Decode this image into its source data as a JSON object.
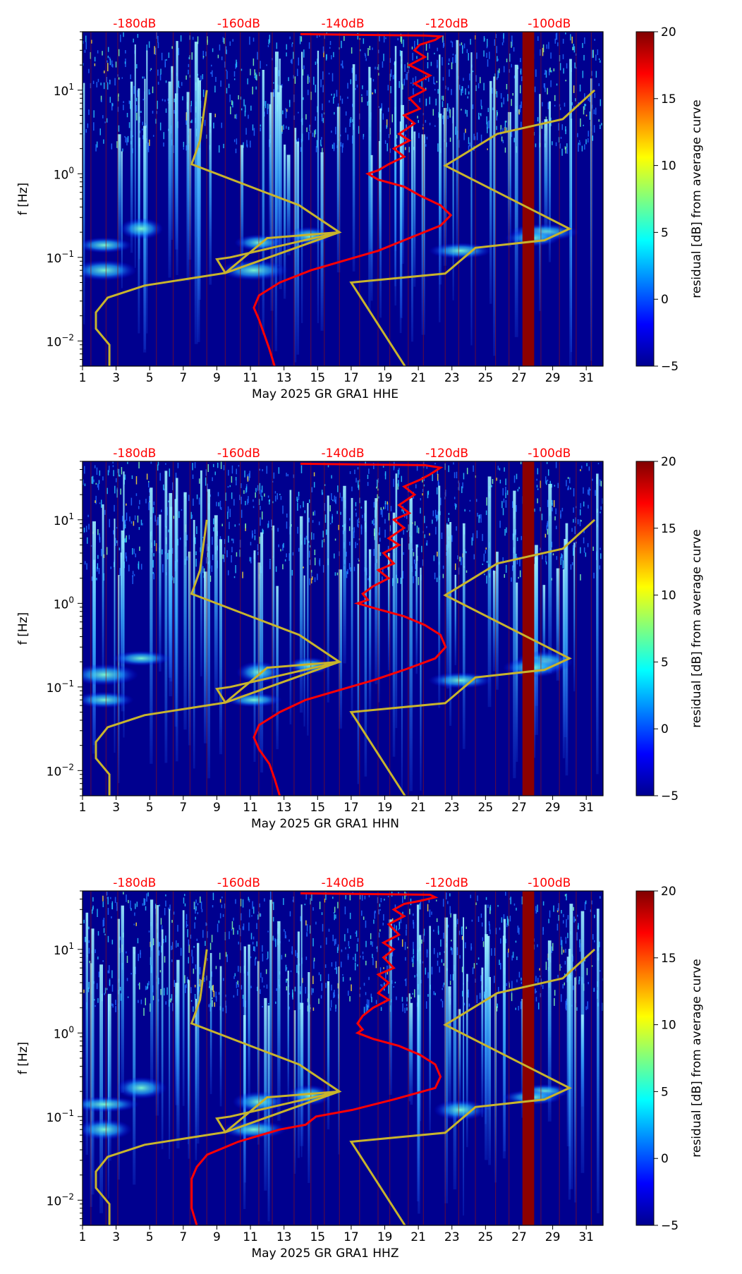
{
  "colors": {
    "background": "#00008f",
    "db_axis_text": "#ff0000",
    "red_curve": "#ff0000",
    "yellow_curve": "#c8b42c",
    "gap_band": "#8b0000",
    "day_lines": "#a0140a"
  },
  "colorbar": {
    "label": "residual [dB] from average curve",
    "ticks": [
      "20",
      "15",
      "10",
      "5",
      "0",
      "−5"
    ],
    "range": [
      -5,
      20
    ]
  },
  "shared_axes": {
    "ylabel": "f [Hz]",
    "y_ticks": [
      {
        "label": "10",
        "exp": "1",
        "f": 10
      },
      {
        "label": "10",
        "exp": "0",
        "f": 1
      },
      {
        "label": "10",
        "exp": "−1",
        "f": 0.1
      },
      {
        "label": "10",
        "exp": "−2",
        "f": 0.01
      }
    ],
    "y_range_hz": [
      0.005,
      50
    ],
    "x_ticks": [
      "1",
      "3",
      "5",
      "7",
      "9",
      "11",
      "13",
      "15",
      "17",
      "19",
      "21",
      "23",
      "25",
      "27",
      "29",
      "31"
    ],
    "x_range_day": [
      1,
      32
    ],
    "db_ticks": [
      "-180dB",
      "-160dB",
      "-140dB",
      "-120dB",
      "-100dB"
    ],
    "db_tick_day": [
      4.1,
      10.3,
      16.5,
      22.7,
      28.8
    ],
    "data_gap_days": [
      27.2,
      27.9
    ],
    "day_lines": [
      1.5,
      2.4,
      3.1,
      5.4,
      6.4,
      7.4,
      8.4,
      9.5,
      10.4,
      11.5,
      12.3,
      13.6,
      14.6,
      15.4,
      16.3,
      17.5,
      18.6,
      19.3,
      20.4,
      21.3,
      22.6,
      23.4,
      24.4,
      25.6,
      26.4,
      28.3,
      29.4,
      30.4,
      31.3
    ]
  },
  "chart_data": [
    {
      "type": "heatmap",
      "title": "",
      "xlabel": "May 2025 GR GRA1  HHE",
      "ylabel": "f [Hz]",
      "noise_model_curve_db_vs_hz": [
        [
          -124,
          45
        ],
        [
          -121,
          44
        ],
        [
          -122,
          40
        ],
        [
          -125,
          35
        ],
        [
          -126,
          30
        ],
        [
          -124,
          25
        ],
        [
          -127,
          20
        ],
        [
          -123,
          15
        ],
        [
          -126,
          12
        ],
        [
          -124,
          10
        ],
        [
          -127,
          8
        ],
        [
          -125,
          6
        ],
        [
          -128,
          5
        ],
        [
          -126,
          4
        ],
        [
          -129,
          3
        ],
        [
          -127,
          2.5
        ],
        [
          -130,
          2
        ],
        [
          -128,
          1.6
        ],
        [
          -131,
          1.3
        ],
        [
          -133,
          1.1
        ],
        [
          -135,
          1.0
        ],
        [
          -133,
          0.85
        ],
        [
          -128,
          0.7
        ],
        [
          -125,
          0.55
        ],
        [
          -121,
          0.42
        ],
        [
          -119,
          0.32
        ],
        [
          -121,
          0.24
        ],
        [
          -127,
          0.17
        ],
        [
          -133,
          0.12
        ],
        [
          -140,
          0.09
        ],
        [
          -146,
          0.07
        ],
        [
          -152,
          0.05
        ],
        [
          -156,
          0.035
        ],
        [
          -157,
          0.025
        ],
        [
          -156,
          0.018
        ],
        [
          -155,
          0.012
        ],
        [
          -154,
          0.008
        ],
        [
          -153,
          0.005
        ]
      ]
    },
    {
      "type": "heatmap",
      "title": "",
      "xlabel": "May 2025 GR GRA1  HHN",
      "ylabel": "f [Hz]",
      "noise_model_curve_db_vs_hz": [
        [
          -124,
          45
        ],
        [
          -121,
          42
        ],
        [
          -123,
          35
        ],
        [
          -125,
          30
        ],
        [
          -128,
          25
        ],
        [
          -126,
          20
        ],
        [
          -129,
          15
        ],
        [
          -127,
          12
        ],
        [
          -130,
          10
        ],
        [
          -128,
          8
        ],
        [
          -131,
          6
        ],
        [
          -129,
          5
        ],
        [
          -132,
          4
        ],
        [
          -130,
          3
        ],
        [
          -133,
          2.5
        ],
        [
          -131,
          2
        ],
        [
          -134,
          1.6
        ],
        [
          -136,
          1.3
        ],
        [
          -135,
          1.1
        ],
        [
          -137,
          1.0
        ],
        [
          -133,
          0.85
        ],
        [
          -128,
          0.7
        ],
        [
          -124,
          0.55
        ],
        [
          -121,
          0.42
        ],
        [
          -120,
          0.3
        ],
        [
          -122,
          0.22
        ],
        [
          -128,
          0.16
        ],
        [
          -134,
          0.12
        ],
        [
          -141,
          0.09
        ],
        [
          -147,
          0.07
        ],
        [
          -152,
          0.05
        ],
        [
          -156,
          0.035
        ],
        [
          -157,
          0.025
        ],
        [
          -156,
          0.018
        ],
        [
          -154,
          0.012
        ],
        [
          -153,
          0.008
        ],
        [
          -152,
          0.005
        ]
      ]
    },
    {
      "type": "heatmap",
      "title": "",
      "xlabel": "May 2025 GR GRA1  HHZ",
      "ylabel": "f [Hz]",
      "noise_model_curve_db_vs_hz": [
        [
          -123,
          45
        ],
        [
          -122,
          42
        ],
        [
          -125,
          38
        ],
        [
          -128,
          35
        ],
        [
          -130,
          30
        ],
        [
          -128,
          25
        ],
        [
          -131,
          20
        ],
        [
          -129,
          15
        ],
        [
          -132,
          12
        ],
        [
          -130,
          10
        ],
        [
          -132,
          8
        ],
        [
          -130,
          6
        ],
        [
          -133,
          5
        ],
        [
          -131,
          4
        ],
        [
          -133,
          3
        ],
        [
          -131,
          2.5
        ],
        [
          -134,
          2
        ],
        [
          -136,
          1.6
        ],
        [
          -137,
          1.3
        ],
        [
          -136,
          1.1
        ],
        [
          -137,
          1.0
        ],
        [
          -134,
          0.85
        ],
        [
          -129,
          0.7
        ],
        [
          -125,
          0.55
        ],
        [
          -122,
          0.42
        ],
        [
          -121,
          0.3
        ],
        [
          -122,
          0.22
        ],
        [
          -130,
          0.16
        ],
        [
          -138,
          0.12
        ],
        [
          -145,
          0.1
        ],
        [
          -147,
          0.08
        ],
        [
          -152,
          0.07
        ],
        [
          -160,
          0.05
        ],
        [
          -166,
          0.035
        ],
        [
          -168,
          0.025
        ],
        [
          -169,
          0.018
        ],
        [
          -169,
          0.012
        ],
        [
          -169,
          0.008
        ],
        [
          -168,
          0.005
        ]
      ]
    }
  ],
  "reference_polygons_day_vs_hz": [
    [
      [
        8.4,
        10
      ],
      [
        8.0,
        2.5
      ],
      [
        7.5,
        1.3
      ],
      [
        13.9,
        0.42
      ],
      [
        16.3,
        0.2
      ],
      [
        9.5,
        0.065
      ],
      [
        9.0,
        0.095
      ],
      [
        9.8,
        0.1
      ],
      [
        16.3,
        0.2
      ],
      [
        12,
        0.17
      ],
      [
        9.5,
        0.065
      ],
      [
        4.7,
        0.046
      ],
      [
        2.5,
        0.033
      ],
      [
        1.8,
        0.022
      ],
      [
        1.8,
        0.014
      ],
      [
        2.6,
        0.009
      ],
      [
        2.6,
        0.005
      ]
    ],
    [
      [
        31.5,
        10
      ],
      [
        29.6,
        4.5
      ],
      [
        25.7,
        3.0
      ],
      [
        22.6,
        1.25
      ],
      [
        30,
        0.22
      ],
      [
        28.5,
        0.16
      ],
      [
        24.4,
        0.13
      ],
      [
        22.6,
        0.064
      ],
      [
        17.0,
        0.05
      ],
      [
        20.2,
        0.005
      ]
    ]
  ]
}
